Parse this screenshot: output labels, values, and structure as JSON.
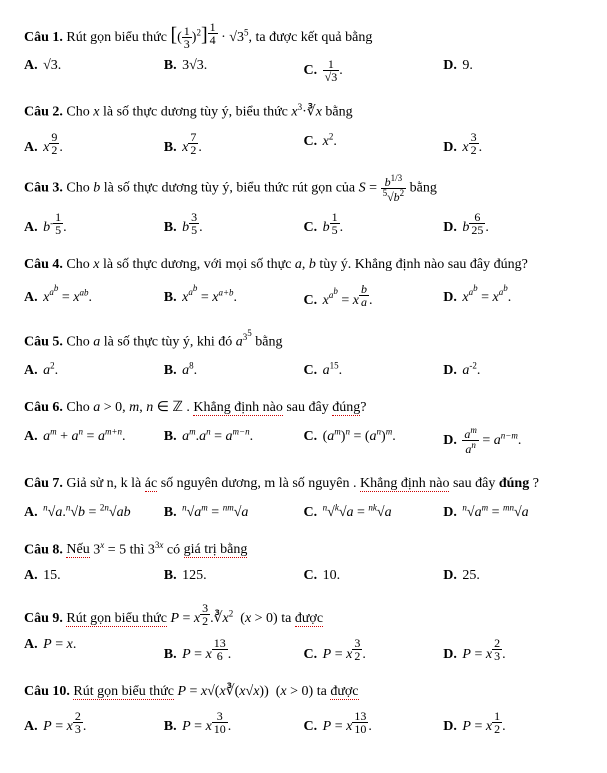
{
  "questions": [
    {
      "label": "Câu 1.",
      "text_html": "Rút gọn biểu thức <span style='font-size:20px'>[</span>(<span class='frac'><span class='num'>1</span><span class='den'>3</span></span>)<sup>2</sup><span style='font-size:20px'>]</span><sup><span class='frac'><span class='num'>1</span><span class='den'>4</span></span></sup> · √3<sup>5</sup>, ta được kết quả bằng",
      "choices": [
        {
          "k": "A.",
          "v": "√3."
        },
        {
          "k": "B.",
          "v": "3√3."
        },
        {
          "k": "C.",
          "v": "<span class='frac'><span class='num'>1</span><span class='den'>√3</span></span>."
        },
        {
          "k": "D.",
          "v": "9."
        }
      ]
    },
    {
      "label": "Câu 2.",
      "text_html": "Cho <i>x</i> là số thực dương tùy ý, biểu thức <i>x</i><sup>3</sup>·∛<i>x</i> bằng",
      "choices": [
        {
          "k": "A.",
          "v": "<i>x</i><sup><span class='frac'><span class='num'>9</span><span class='den'>2</span></span></sup>."
        },
        {
          "k": "B.",
          "v": "<i>x</i><sup><span class='frac'><span class='num'>7</span><span class='den'>2</span></span></sup>."
        },
        {
          "k": "C.",
          "v": "<i>x</i><sup>2</sup>."
        },
        {
          "k": "D.",
          "v": "<i>x</i><sup><span class='frac'><span class='num'>3</span><span class='den'>2</span></span></sup>."
        }
      ]
    },
    {
      "label": "Câu 3.",
      "text_html": "Cho <i>b</i> là số thực dương tùy ý, biểu thức rút gọn của <i>S</i> = <span class='frac'><span class='num'><i>b</i><sup>1/3</sup></span><span class='den'><sup>5</sup>√<i>b</i><sup>2</sup></span></span> bằng",
      "choices": [
        {
          "k": "A.",
          "v": "<i>b</i><sup>-<span class='frac'><span class='num'>1</span><span class='den'>5</span></span></sup>."
        },
        {
          "k": "B.",
          "v": "<i>b</i><sup><span class='frac'><span class='num'>3</span><span class='den'>5</span></span></sup>."
        },
        {
          "k": "C.",
          "v": "<i>b</i><sup><span class='frac'><span class='num'>1</span><span class='den'>5</span></span></sup>."
        },
        {
          "k": "D.",
          "v": "<i>b</i><sup><span class='frac'><span class='num'>6</span><span class='den'>25</span></span></sup>."
        }
      ]
    },
    {
      "label": "Câu 4.",
      "text_html": "Cho <i>x</i> là số thực dương, với mọi số thực <i>a</i>, <i>b</i> tùy ý. Khẳng định nào sau đây đúng?",
      "choices": [
        {
          "k": "A.",
          "v": "<i>x</i><sup><i>a</i><sup><i>b</i></sup></sup> = <i>x</i><sup><i>ab</i></sup>."
        },
        {
          "k": "B.",
          "v": "<i>x</i><sup><i>a</i><sup><i>b</i></sup></sup> = <i>x</i><sup><i>a+b</i></sup>."
        },
        {
          "k": "C.",
          "v": "<i>x</i><sup><i>a</i><sup><i>b</i></sup></sup> = <i>x</i><sup><span class='frac'><span class='num'><i>b</i></span><span class='den'><i>a</i></span></span></sup>."
        },
        {
          "k": "D.",
          "v": "<i>x</i><sup><i>a</i><sup><i>b</i></sup></sup> = <i>x</i><sup><i>a<sup>b</sup></i></sup>."
        }
      ]
    },
    {
      "label": "Câu 5.",
      "text_html": "Cho <i>a</i> là số thực tùy ý, khi đó <i>a</i><sup>3<sup>5</sup></sup> bằng",
      "choices": [
        {
          "k": "A.",
          "v": "<i>a</i><sup>2</sup>."
        },
        {
          "k": "B.",
          "v": "<i>a</i><sup>8</sup>."
        },
        {
          "k": "C.",
          "v": "<i>a</i><sup>15</sup>."
        },
        {
          "k": "D.",
          "v": "<i>a</i><sup>-2</sup>."
        }
      ]
    },
    {
      "label": "Câu 6.",
      "text_html": "Cho <i>a</i> &gt; 0, <i>m</i>, <i>n</i> ∈ ℤ . <span class='dotted'>Khẳng định nào</span> sau đây <span class='dotted'>đúng</span>?",
      "choices": [
        {
          "k": "A.",
          "v": "<i>a</i><sup><i>m</i></sup> + <i>a</i><sup><i>n</i></sup> = <i>a</i><sup><i>m+n</i></sup>."
        },
        {
          "k": "B.",
          "v": "<i>a</i><sup><i>m</i></sup>.<i>a</i><sup><i>n</i></sup> = <i>a</i><sup><i>m−n</i></sup>."
        },
        {
          "k": "C.",
          "v": "(<i>a</i><sup><i>m</i></sup>)<sup><i>n</i></sup> = (<i>a</i><sup><i>n</i></sup>)<sup><i>m</i></sup>."
        },
        {
          "k": "D.",
          "v": "<span class='frac'><span class='num'><i>a</i><sup><i>m</i></sup></span><span class='den'><i>a</i><sup><i>n</i></sup></span></span> = <i>a</i><sup><i>n−m</i></sup>."
        }
      ]
    },
    {
      "label": "Câu 7.",
      "text_html": "Giả sử n, k là <span class='dotted'>ác</span> số nguyên dương, m là số nguyên . <span class='dotted'>Khẳng định nào</span> sau đây <b>đúng</b> ?",
      "choices": [
        {
          "k": "A.",
          "v": "<sup><i>n</i></sup>√<i>a</i>.<sup><i>n</i></sup>√<i>b</i> = <sup>2<i>n</i></sup>√<i>ab</i>"
        },
        {
          "k": "B.",
          "v": "<sup><i>n</i></sup>√<i>a</i><sup><i>m</i></sup> = <sup><i>nm</i></sup>√<i>a</i>"
        },
        {
          "k": "C.",
          "v": "<sup><i>n</i></sup>√<sup><i>k</i></sup>√<i>a</i> = <sup><i>nk</i></sup>√<i>a</i>"
        },
        {
          "k": "D.",
          "v": "<sup><i>n</i></sup>√<i>a</i><sup><i>m</i></sup> = <sup><i>mn</i></sup>√<i>a</i>"
        }
      ]
    },
    {
      "label": "Câu 8.",
      "text_html": "<span class='dotted'>Nếu</span> 3<sup><i>x</i></sup> = 5 thì 3<sup>3<i>x</i></sup> có <span class='dotted'>giá trị bằng</span>",
      "choices": [
        {
          "k": "A.",
          "v": "15."
        },
        {
          "k": "B.",
          "v": "125."
        },
        {
          "k": "C.",
          "v": "10."
        },
        {
          "k": "D.",
          "v": "25."
        }
      ]
    },
    {
      "label": "Câu 9.",
      "text_html": "<span class='dotted'>Rút gọn biểu thức</span> <i>P</i> = <i>x</i><sup><span class='frac'><span class='num'>3</span><span class='den'>2</span></span></sup>.∛<i>x</i><sup>2</sup>&nbsp; (<i>x</i> &gt; 0) ta <span class='dotted'>được</span>",
      "choices": [
        {
          "k": "A.",
          "v": "<i>P</i> = <i>x</i>."
        },
        {
          "k": "B.",
          "v": "<i>P</i> = <i>x</i><sup><span class='frac'><span class='num'>13</span><span class='den'>6</span></span></sup>."
        },
        {
          "k": "C.",
          "v": "<i>P</i> = <i>x</i><sup><span class='frac'><span class='num'>3</span><span class='den'>2</span></span></sup>."
        },
        {
          "k": "D.",
          "v": "<i>P</i> = <i>x</i><sup><span class='frac'><span class='num'>2</span><span class='den'>3</span></span></sup>."
        }
      ]
    },
    {
      "label": "Câu 10.",
      "text_html": "<span class='dotted'>Rút gọn biểu thức</span> <i>P</i> = <i>x</i>√(<i>x</i>∛(<i>x</i>√<i>x</i>))&nbsp; (<i>x</i> &gt; 0) ta <span class='dotted'>được</span>",
      "choices": [
        {
          "k": "A.",
          "v": "<i>P</i> = <i>x</i><sup><span class='frac'><span class='num'>2</span><span class='den'>3</span></span></sup>."
        },
        {
          "k": "B.",
          "v": "<i>P</i> = <i>x</i><sup><span class='frac'><span class='num'>3</span><span class='den'>10</span></span></sup>."
        },
        {
          "k": "C.",
          "v": "<i>P</i> = <i>x</i><sup><span class='frac'><span class='num'>13</span><span class='den'>10</span></span></sup>."
        },
        {
          "k": "D.",
          "v": "<i>P</i> = <i>x</i><sup><span class='frac'><span class='num'>1</span><span class='den'>2</span></span></sup>."
        }
      ]
    }
  ]
}
